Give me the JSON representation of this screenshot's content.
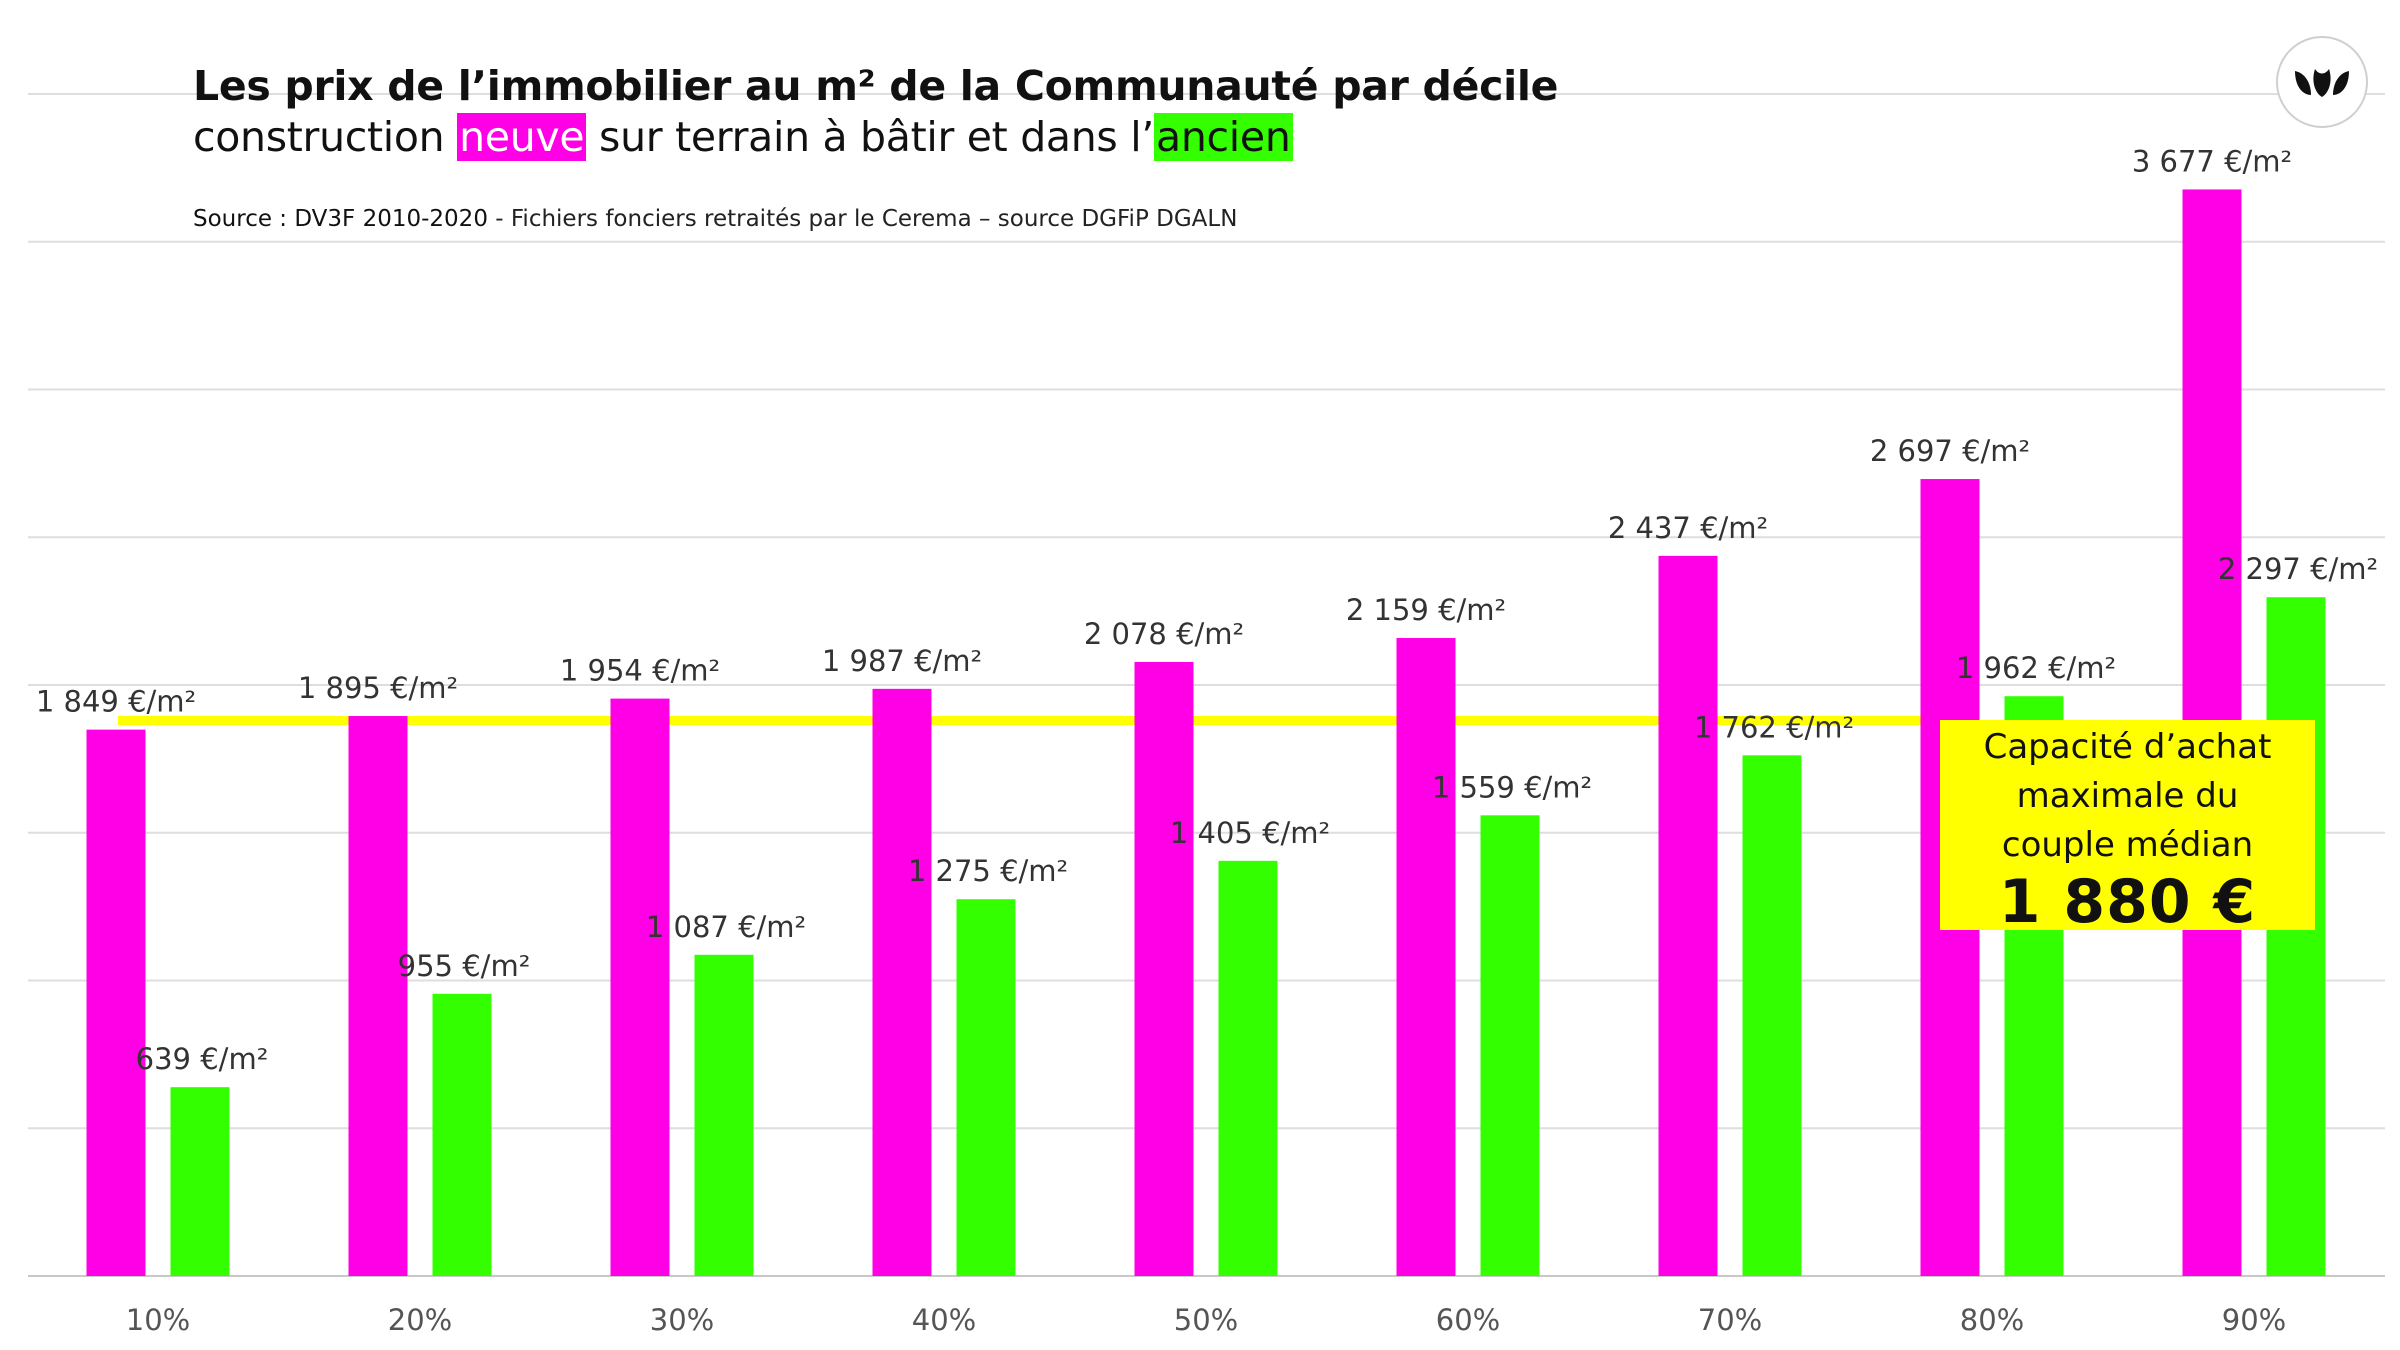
{
  "header": {
    "title_line1": "Les prix de l’immobilier au m² de la Communauté par décile",
    "title_line2_a": "construction ",
    "title_line2_new": "neuve",
    "title_line2_b": " sur terrain à bâtir et dans l’",
    "title_line2_old": "ancien",
    "source_prefix": "Source : DV3F 2010-2020",
    "source_rest": " - Fichiers fonciers retraités par le Cerema – source DGFiP DGALN"
  },
  "callout": {
    "text_line1": "Capacité d’achat",
    "text_line2": "maximale du",
    "text_line3": "couple médian",
    "value": "1 880 €"
  },
  "logo": {
    "icon": "leaves-logo-icon"
  },
  "chart_data": {
    "type": "bar",
    "categories": [
      "10%",
      "20%",
      "30%",
      "40%",
      "50%",
      "60%",
      "70%",
      "80%",
      "90%"
    ],
    "series": [
      {
        "key": "neuve",
        "color": "#ff00e6",
        "values": [
          1849,
          1895,
          1954,
          1987,
          2078,
          2159,
          2437,
          2697,
          3677
        ],
        "labels": [
          "1 849 €/m²",
          "1 895 €/m²",
          "1 954 €/m²",
          "1 987 €/m²",
          "2 078 €/m²",
          "2 159 €/m²",
          "2 437 €/m²",
          "2 697 €/m²",
          "3 677 €/m²"
        ]
      },
      {
        "key": "ancien",
        "color": "#33ff00",
        "values": [
          639,
          955,
          1087,
          1275,
          1405,
          1559,
          1762,
          1962,
          2297
        ],
        "labels": [
          "639 €/m²",
          "955 €/m²",
          "1 087 €/m²",
          "1 275 €/m²",
          "1 405 €/m²",
          "1 559 €/m²",
          "1 762 €/m²",
          "1 962 €/m²",
          "2 297 €/m²"
        ]
      }
    ],
    "reference_line": {
      "value": 1880,
      "color": "#ffff00"
    },
    "ylim": [
      0,
      4000
    ],
    "grid": true,
    "legend": "none",
    "highlight_colors": {
      "neuve": "#ff00e6",
      "ancien": "#33ff00"
    }
  }
}
